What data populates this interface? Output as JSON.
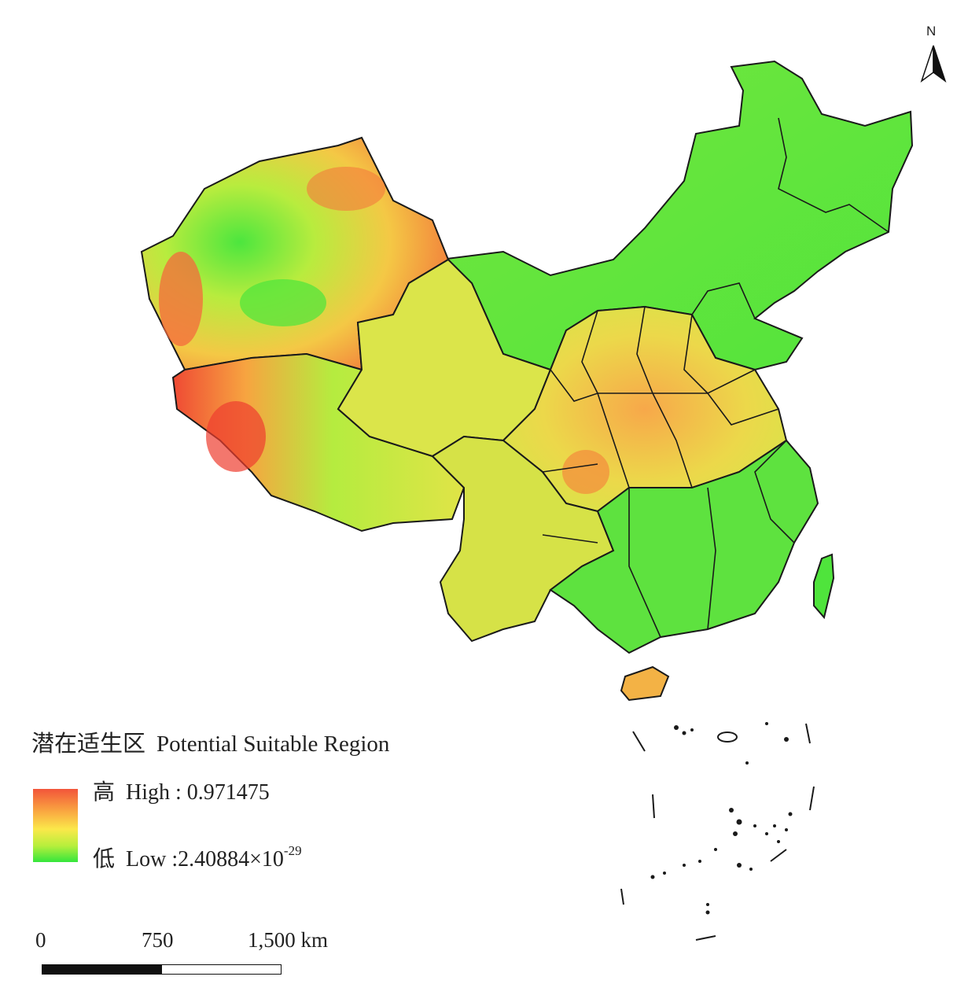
{
  "legend": {
    "title_cn": "潜在适生区",
    "title_en": "Potential Suitable Region",
    "high_cn": "高",
    "high_label": "High : 0.971475",
    "low_cn": "低",
    "low_label": "Low :2.40884×10",
    "low_exponent": "-29",
    "ramp_colors": [
      "#f2553a",
      "#f9a040",
      "#fbe84a",
      "#b6ef3c",
      "#34e63c"
    ]
  },
  "scale_bar": {
    "tick_0": "0",
    "tick_1": "750",
    "tick_2": "1,500 km"
  },
  "north_arrow": {
    "label": "N",
    "icon": "north-arrow-icon"
  },
  "colors": {
    "boundary": "#1a1a1a",
    "high_suitability": "#f2553a",
    "medium_suitability": "#fbe84a",
    "low_suitability": "#34e63c"
  }
}
